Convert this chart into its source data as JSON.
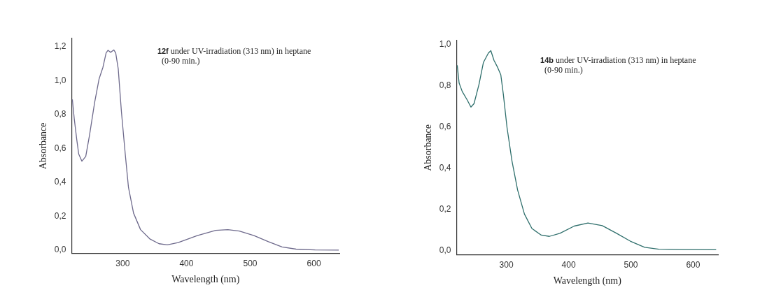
{
  "chart_data": [
    {
      "type": "line",
      "xlabel": "Wavelength (nm)",
      "ylabel": "Absorbance",
      "annotations": [
        "12f under UV-irradiation (313 nm) in heptane",
        "(0-90 min.)"
      ],
      "xlim": [
        220,
        640
      ],
      "xticks": [
        300,
        400,
        500,
        600
      ],
      "ylim": [
        -0.02,
        1.25
      ],
      "yticks": [
        {
          "value": 0,
          "label": "0,0"
        },
        {
          "value": 0.2,
          "label": "0,2"
        },
        {
          "value": 0.4,
          "label": "0,4"
        },
        {
          "value": 0.6,
          "label": "0,6"
        },
        {
          "value": 0.8,
          "label": "0,8"
        },
        {
          "value": 1.0,
          "label": "1,0"
        },
        {
          "value": 1.2,
          "label": "1,2"
        }
      ],
      "grid": false,
      "legend": false,
      "marker": "none",
      "line_style": "solid",
      "series": [
        {
          "color": "#6e6a8c",
          "x": [
            221,
            224,
            228,
            231,
            236,
            242,
            248,
            256,
            263,
            269,
            274,
            277,
            281,
            286,
            289,
            293,
            298,
            304,
            309,
            317,
            328,
            343,
            357,
            370,
            387,
            417,
            446,
            465,
            483,
            506,
            528,
            550,
            572,
            602,
            639
          ],
          "values": [
            0.89,
            0.775,
            0.65,
            0.567,
            0.525,
            0.553,
            0.68,
            0.873,
            1.012,
            1.08,
            1.165,
            1.18,
            1.168,
            1.182,
            1.165,
            1.07,
            0.817,
            0.567,
            0.372,
            0.219,
            0.121,
            0.065,
            0.038,
            0.031,
            0.045,
            0.086,
            0.117,
            0.121,
            0.113,
            0.086,
            0.051,
            0.019,
            0.006,
            0.001,
            0.0
          ]
        }
      ]
    },
    {
      "type": "line",
      "xlabel": "Wavelength (nm)",
      "ylabel": "Absorbance",
      "annotations": [
        "14b under UV-irradiation (313 nm) in heptane",
        "(0-90 min.)"
      ],
      "xlim": [
        220,
        640
      ],
      "xticks": [
        300,
        400,
        500,
        600
      ],
      "ylim": [
        -0.02,
        1.02
      ],
      "yticks": [
        {
          "value": 0,
          "label": "0,0"
        },
        {
          "value": 0.2,
          "label": "0,2"
        },
        {
          "value": 0.4,
          "label": "0,4"
        },
        {
          "value": 0.6,
          "label": "0,6"
        },
        {
          "value": 0.8,
          "label": "0,8"
        },
        {
          "value": 1.0,
          "label": "1,0"
        }
      ],
      "grid": false,
      "legend": false,
      "marker": "none",
      "line_style": "solid",
      "series": [
        {
          "color": "#2f6f6c",
          "x": [
            221,
            224,
            229,
            237,
            243,
            248,
            256,
            263,
            271,
            275,
            280,
            286,
            291,
            295,
            301,
            309,
            318,
            329,
            341,
            356,
            369,
            386,
            409,
            431,
            454,
            477,
            499,
            522,
            545,
            578,
            637
          ],
          "values": [
            0.9,
            0.814,
            0.773,
            0.732,
            0.697,
            0.714,
            0.808,
            0.913,
            0.959,
            0.971,
            0.924,
            0.889,
            0.854,
            0.761,
            0.598,
            0.435,
            0.295,
            0.178,
            0.108,
            0.076,
            0.07,
            0.085,
            0.12,
            0.135,
            0.122,
            0.085,
            0.047,
            0.017,
            0.008,
            0.006,
            0.005
          ]
        }
      ]
    }
  ]
}
